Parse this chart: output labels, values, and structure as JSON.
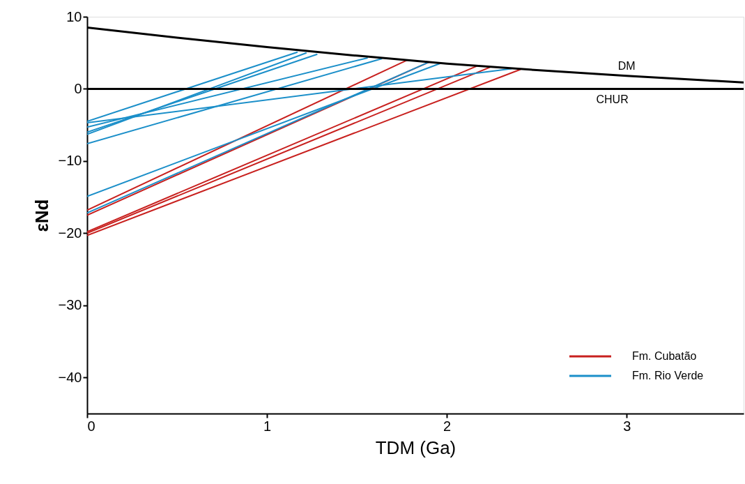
{
  "chart_data": {
    "type": "line",
    "xlabel": "TDM (Ga)",
    "ylabel": "εNd",
    "xlim": [
      0,
      3.65
    ],
    "ylim": [
      -45,
      10
    ],
    "xticks": [
      0,
      1,
      2,
      3
    ],
    "yticks": [
      -40,
      -30,
      -20,
      -10,
      0,
      10
    ],
    "grid": false,
    "legend": "bottom right",
    "marker": "none",
    "line_style": "solid",
    "series": [
      {
        "name": "Fm. Cubatão",
        "color": "#c8201e",
        "x": [
          0,
          1.78
        ],
        "values": [
          -16.8,
          4.0
        ]
      },
      {
        "color": "#c8201e",
        "x": [
          0,
          1.9
        ],
        "values": [
          -17.5,
          3.7
        ]
      },
      {
        "color": "#c8201e",
        "x": [
          0,
          2.17
        ],
        "values": [
          -19.8,
          3.2
        ]
      },
      {
        "color": "#c8201e",
        "x": [
          0,
          2.24
        ],
        "values": [
          -20.0,
          3.0
        ]
      },
      {
        "color": "#c8201e",
        "x": [
          0,
          2.41
        ],
        "values": [
          -20.3,
          2.7
        ]
      },
      {
        "name": "Fm. Rio Verde",
        "color": "#1b8fc9",
        "x": [
          0,
          1.17
        ],
        "values": [
          -4.5,
          5.1
        ]
      },
      {
        "color": "#1b8fc9",
        "x": [
          0,
          1.22
        ],
        "values": [
          -6.3,
          5.0
        ]
      },
      {
        "color": "#1b8fc9",
        "x": [
          0,
          1.28
        ],
        "values": [
          -6.0,
          4.8
        ]
      },
      {
        "color": "#1b8fc9",
        "x": [
          0,
          1.56
        ],
        "values": [
          -5.3,
          4.3
        ]
      },
      {
        "color": "#1b8fc9",
        "x": [
          0,
          1.64
        ],
        "values": [
          -7.6,
          4.2
        ]
      },
      {
        "color": "#1b8fc9",
        "x": [
          0,
          2.36
        ],
        "values": [
          -4.7,
          2.8
        ]
      },
      {
        "color": "#1b8fc9",
        "x": [
          0,
          1.97
        ],
        "values": [
          -14.9,
          3.6
        ]
      },
      {
        "color": "#1b8fc9",
        "x": [
          0,
          1.9
        ],
        "values": [
          -17.2,
          3.7
        ]
      },
      {
        "color": "#000000",
        "x": [
          0,
          0.5,
          1,
          1.5,
          2,
          2.5,
          3,
          3.5,
          3.65
        ],
        "values": [
          8.5,
          7.1,
          5.8,
          4.6,
          3.5,
          2.6,
          1.8,
          1.1,
          0.9
        ]
      }
    ],
    "ref_lines": [
      {
        "axis": "y",
        "value": 0,
        "label": "CHUR",
        "color": "#000000"
      }
    ],
    "annotations": [
      {
        "text": "DM",
        "x": 3.0,
        "y": 1.8
      }
    ]
  }
}
